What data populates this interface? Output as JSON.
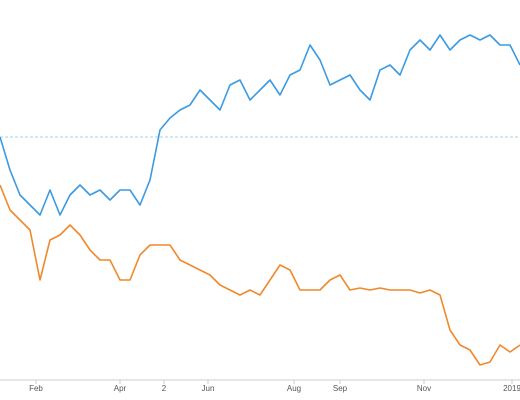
{
  "chart_data": {
    "type": "line",
    "x": [
      0,
      5,
      10,
      15,
      20,
      25,
      30,
      35,
      40,
      45,
      50,
      55,
      60,
      65,
      70,
      75,
      80,
      85,
      90,
      95,
      100,
      105,
      110,
      115,
      120,
      125,
      130,
      135,
      140,
      145,
      150,
      155,
      160,
      165,
      170,
      175,
      180,
      185,
      190,
      195,
      200,
      205,
      210,
      215,
      220,
      225,
      230,
      235,
      240,
      245,
      250,
      255,
      260
    ],
    "xlim": [
      0,
      260
    ],
    "xticks": [
      {
        "value": 18,
        "label": "Feb"
      },
      {
        "value": 60,
        "label": "Apr"
      },
      {
        "value": 82,
        "label": "2"
      },
      {
        "value": 104,
        "label": "Jun"
      },
      {
        "value": 147,
        "label": "Aug"
      },
      {
        "value": 170,
        "label": "Sep"
      },
      {
        "value": 212,
        "label": "Nov"
      },
      {
        "value": 256,
        "label": "2019"
      }
    ],
    "ylim": [
      0,
      380
    ],
    "reference_line": 243,
    "series": [
      {
        "color": "#3b9ae1",
        "values": [
          243,
          210,
          185,
          175,
          165,
          190,
          165,
          185,
          195,
          185,
          190,
          180,
          190,
          190,
          175,
          200,
          250,
          262,
          270,
          275,
          290,
          280,
          270,
          295,
          300,
          280,
          290,
          300,
          285,
          305,
          310,
          335,
          320,
          295,
          300,
          305,
          290,
          280,
          310,
          315,
          305,
          330,
          340,
          330,
          345,
          330,
          340,
          345,
          340,
          345,
          335,
          335,
          315
        ]
      },
      {
        "color": "#f0892b",
        "values": [
          195,
          170,
          160,
          150,
          100,
          140,
          145,
          155,
          145,
          130,
          120,
          120,
          100,
          100,
          125,
          135,
          135,
          135,
          120,
          115,
          110,
          105,
          95,
          90,
          85,
          90,
          85,
          100,
          115,
          110,
          90,
          90,
          90,
          100,
          105,
          90,
          92,
          90,
          92,
          90,
          90,
          90,
          87,
          90,
          85,
          50,
          35,
          30,
          15,
          18,
          35,
          28,
          35
        ]
      }
    ]
  }
}
